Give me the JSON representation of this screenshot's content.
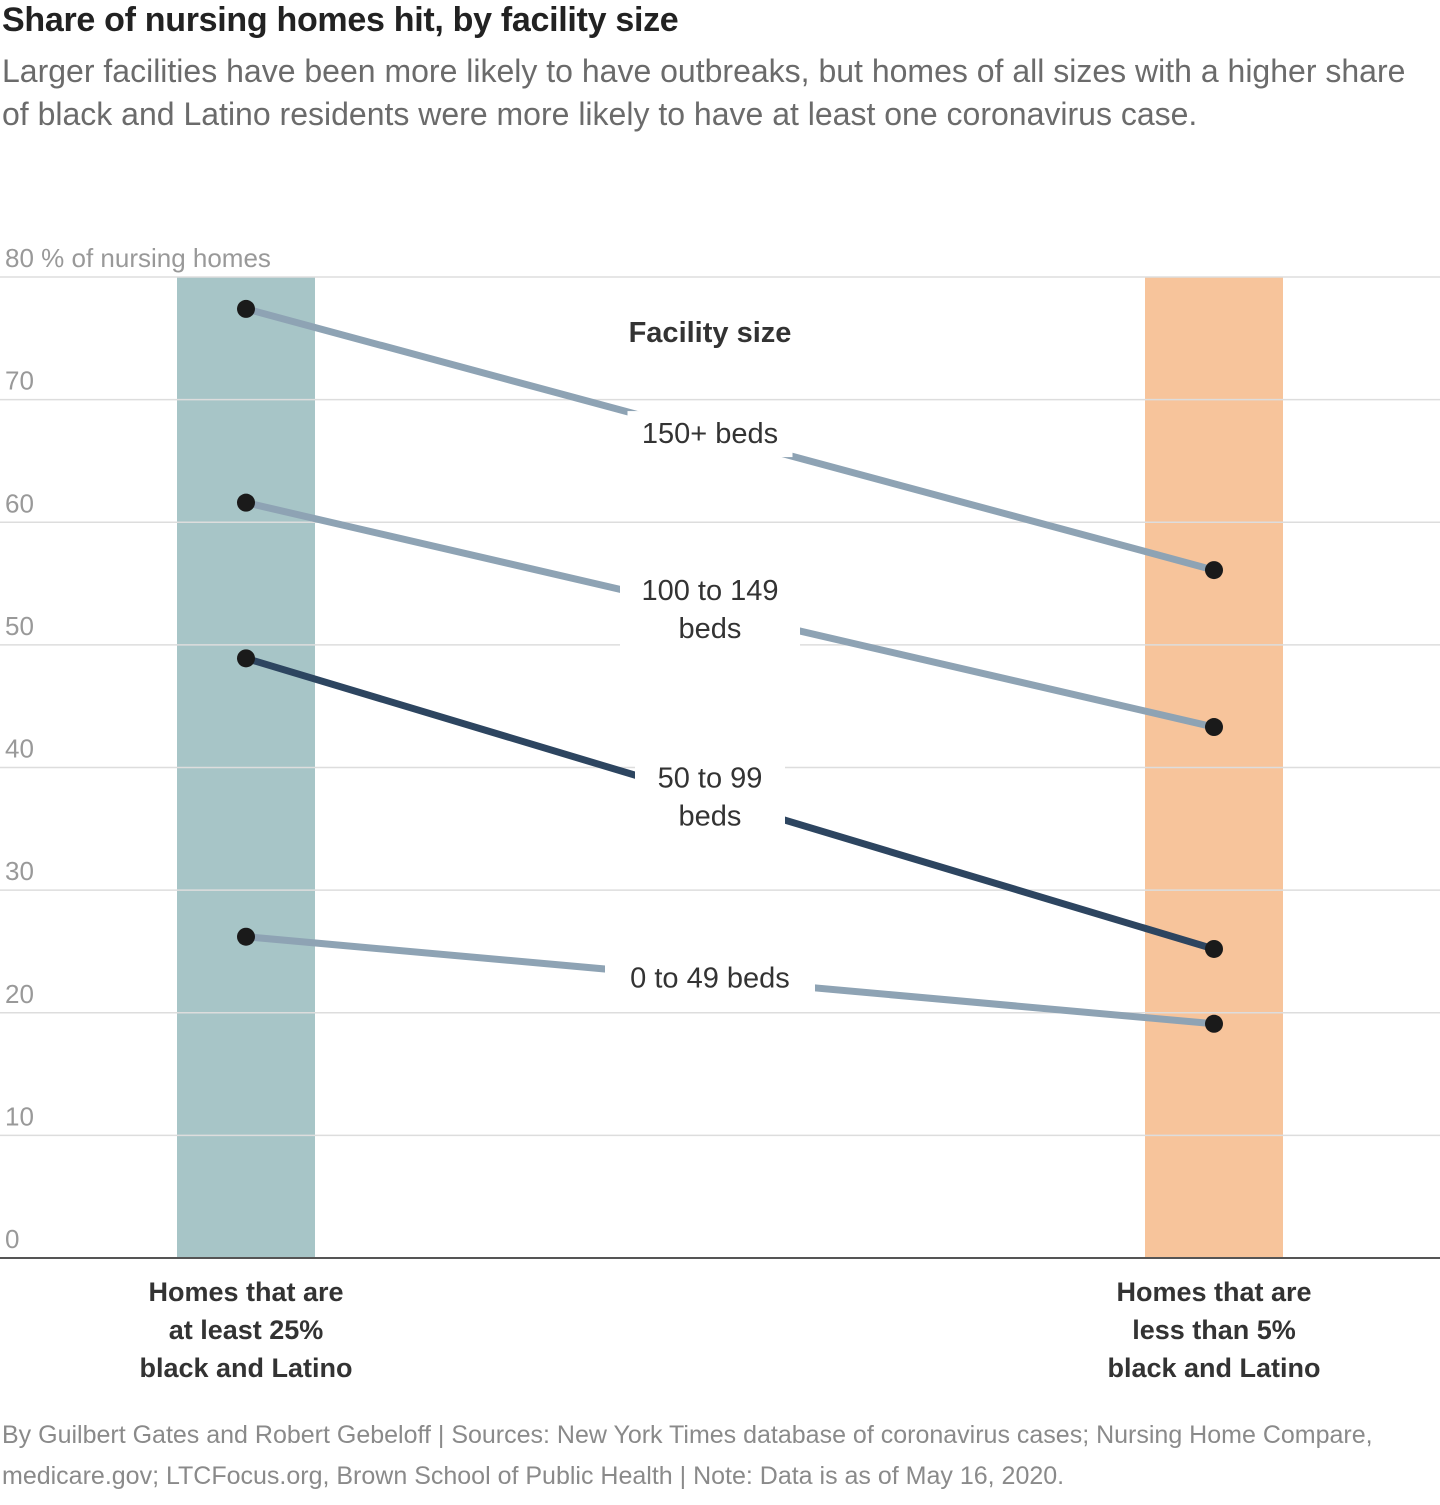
{
  "title": "Share of nursing homes hit, by facility size",
  "subtitle": "Larger facilities have been more likely to have outbreaks, but homes of all sizes with a higher share of black and Latino residents were more likely to have at least one coronavirus case.",
  "credit": "By Guilbert Gates and Robert Gebeloff | Sources: New York Times database of coronavirus cases; Nursing Home Compare, medicare.gov; LTCFocus.org, Brown School of Public Health | Note: Data is as of May 16, 2020.",
  "colors": {
    "left_band": "#a7c5c7",
    "right_band": "#f7c49b",
    "line_light": "#8ea3b4",
    "line_dark": "#2d4560",
    "dot": "#1a1a1a",
    "grid": "#dddddd",
    "axis_text": "#999999"
  },
  "chart_data": {
    "type": "line",
    "ylabel": "% of nursing homes",
    "ylim": [
      0,
      80
    ],
    "yticks": [
      0,
      10,
      20,
      30,
      40,
      50,
      60,
      70,
      80
    ],
    "categories": [
      [
        "Homes that are",
        "at least 25%",
        "black and Latino"
      ],
      [
        "Homes that are",
        "less than 5%",
        "black and Latino"
      ]
    ],
    "legend_title": "Facility size",
    "series": [
      {
        "name": [
          "150+ beds"
        ],
        "values": [
          77.4,
          56.1
        ],
        "style": "light"
      },
      {
        "name": [
          "100 to 149",
          "beds"
        ],
        "values": [
          61.6,
          43.3
        ],
        "style": "light"
      },
      {
        "name": [
          "50 to 99",
          "beds"
        ],
        "values": [
          48.9,
          25.2
        ],
        "style": "dark"
      },
      {
        "name": [
          "0 to 49 beds"
        ],
        "values": [
          26.2,
          19.1
        ],
        "style": "light"
      }
    ]
  }
}
